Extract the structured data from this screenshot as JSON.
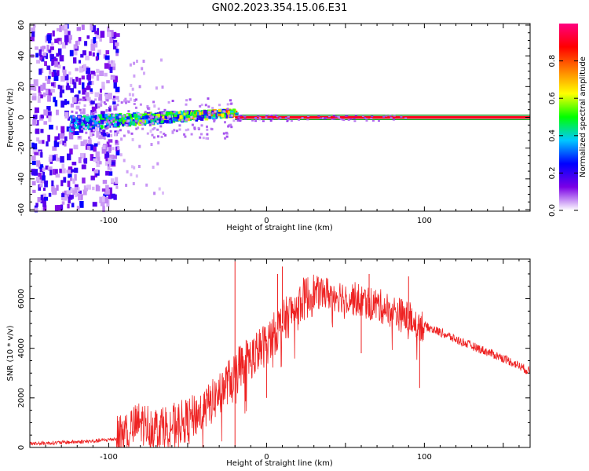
{
  "title": "GN02.2023.354.15.06.E31",
  "colors": {
    "signal": "#ee2222",
    "signal_band": "#bdbdbd",
    "band_line": "#10a010",
    "axis": "#000000",
    "background": "#ffffff"
  },
  "chart_data": [
    {
      "type": "heatmap",
      "title": "GN02.2023.354.15.06.E31",
      "xlabel": "Height of straight line (km)",
      "ylabel": "Frequency (Hz)",
      "xlim": [
        -150,
        167
      ],
      "ylim": [
        -61,
        61
      ],
      "xticks": [
        -100,
        0,
        100
      ],
      "yticks": [
        -60,
        -40,
        -20,
        0,
        20,
        40,
        60
      ],
      "colorbar": {
        "label": "Normalized spectral amplitude",
        "range": [
          0,
          1
        ],
        "ticks": [
          "0.0",
          "0.2",
          "0.4",
          "0.6",
          "0.8"
        ],
        "tick_values": [
          0.0,
          0.2,
          0.4,
          0.6,
          0.8
        ],
        "colormap": [
          "#ffffff",
          "#7a00e6",
          "#0000ff",
          "#00c8ff",
          "#00ff00",
          "#ffff00",
          "#ff8000",
          "#ff0000",
          "#ff0080"
        ]
      },
      "features": [
        {
          "name": "noise-scatter",
          "x_range": [
            -150,
            -100
          ],
          "y_range": [
            -61,
            61
          ],
          "amplitude": 0.1
        },
        {
          "name": "tone-cluster",
          "x_range": [
            -125,
            -20
          ],
          "y_center_range": [
            -4,
            6
          ],
          "amplitude": 0.4
        },
        {
          "name": "tone-line",
          "x_range": [
            -20,
            167
          ],
          "y": 0,
          "amplitude": 0.9
        },
        {
          "name": "band-lines",
          "y": [
            -1.5,
            1.5
          ]
        }
      ]
    },
    {
      "type": "line",
      "xlabel": "Height of straight line (km)",
      "ylabel": "SNR (10 * v/v)",
      "xlim": [
        -150,
        167
      ],
      "ylim": [
        0,
        7600
      ],
      "xticks": [
        -100,
        0,
        100
      ],
      "yticks": [
        0,
        2000,
        4000,
        6000
      ],
      "series": [
        {
          "x": [
            -150,
            -130,
            -110,
            -95,
            -90,
            -80,
            -70,
            -60,
            -50,
            -40,
            -35,
            -30,
            -25,
            -20,
            -15,
            -10,
            -5,
            0,
            5,
            10,
            15,
            20,
            25,
            30,
            35,
            40,
            50,
            60,
            70,
            80,
            90,
            95,
            100,
            110,
            120,
            130,
            140,
            150,
            160,
            167
          ],
          "values": [
            150,
            200,
            250,
            350,
            600,
            1000,
            800,
            900,
            1100,
            1500,
            1800,
            2200,
            2600,
            3000,
            3500,
            3600,
            3900,
            4200,
            4600,
            5000,
            5400,
            5800,
            6050,
            6200,
            6250,
            6200,
            6100,
            5900,
            5750,
            5500,
            5200,
            5050,
            4900,
            4650,
            4350,
            4100,
            3850,
            3600,
            3300,
            3050
          ],
          "spikes": [
            {
              "x": -20,
              "value": 7500
            },
            {
              "x": 10,
              "value": 7300
            },
            {
              "x": 7,
              "value": 7000
            },
            {
              "x": 65,
              "value": 7000
            },
            {
              "x": 90,
              "value": 6900
            }
          ],
          "dips": [
            {
              "x": 97,
              "value": 2400
            },
            {
              "x": -20,
              "value": 0
            },
            {
              "x": 0,
              "value": 2000
            },
            {
              "x": 60,
              "value": 3800
            }
          ]
        }
      ]
    }
  ]
}
